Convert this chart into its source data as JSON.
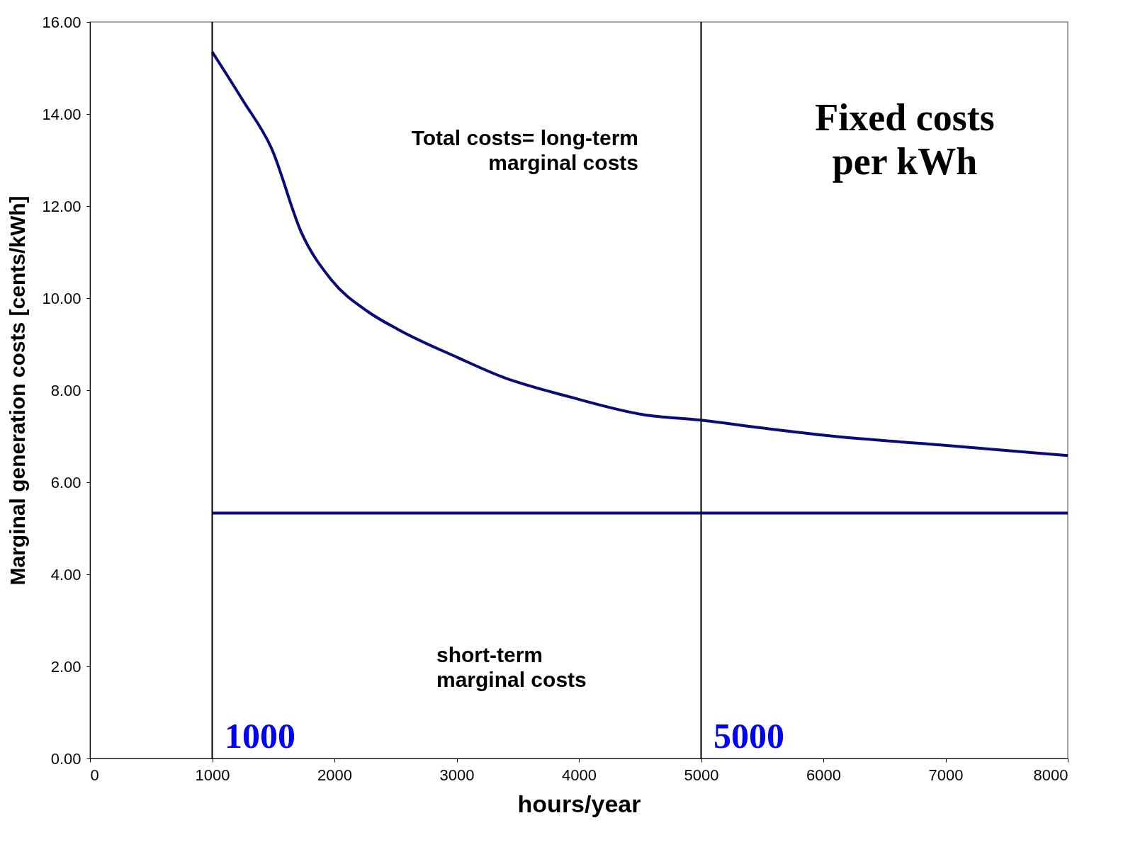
{
  "chart_data": {
    "type": "line",
    "xlabel": "hours/year",
    "ylabel": "Marginal generation costs [cents/kWh]",
    "xlim": [
      0,
      8000
    ],
    "xticks": [
      0,
      1000,
      2000,
      3000,
      4000,
      5000,
      6000,
      7000,
      8000
    ],
    "ylim": [
      0,
      16
    ],
    "yticks": [
      {
        "value": 0,
        "label": "0.00"
      },
      {
        "value": 2,
        "label": "2.00"
      },
      {
        "value": 4,
        "label": "4.00"
      },
      {
        "value": 6,
        "label": "6.00"
      },
      {
        "value": 8,
        "label": "8.00"
      },
      {
        "value": 10,
        "label": "10.00"
      },
      {
        "value": 12,
        "label": "12.00"
      },
      {
        "value": 14,
        "label": "14.00"
      },
      {
        "value": 16,
        "label": "16.00"
      }
    ],
    "grid": false,
    "marker": "none",
    "line_style": "solid",
    "series": [
      {
        "color": "#0a0a78",
        "x": [
          1000,
          1250,
          1486,
          1729,
          1974,
          2278,
          2521,
          3008,
          3372,
          3919,
          4526,
          5000,
          5500,
          6046,
          6957,
          8000
        ],
        "values": [
          15.35,
          14.3,
          13.25,
          11.43,
          10.4,
          9.7,
          9.32,
          8.71,
          8.29,
          7.86,
          7.47,
          7.35,
          7.18,
          7.01,
          6.81,
          6.58
        ]
      },
      {
        "color": "#0a0a78",
        "x": [
          1000,
          8000
        ],
        "values": [
          5.33,
          5.33
        ]
      }
    ],
    "ref_lines": [
      {
        "axis": "x",
        "value": 1000,
        "color": "#000000"
      },
      {
        "axis": "x",
        "value": 5000,
        "color": "#000000"
      }
    ],
    "annotations": [
      "Total costs= long-term\nmarginal costs",
      "short-term\nmarginal costs",
      "Fixed costs\nper kWh",
      "1000",
      "5000"
    ]
  }
}
